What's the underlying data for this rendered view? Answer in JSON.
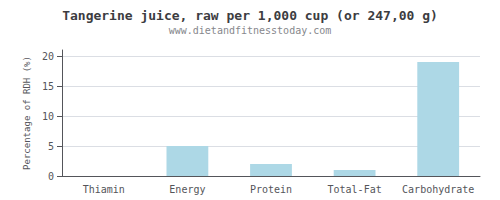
{
  "chart_data": {
    "type": "bar",
    "title": "Tangerine juice, raw per 1,000 cup (or 247,00 g)",
    "subtitle": "www.dietandfitnesstoday.com",
    "categories": [
      "Thiamin",
      "Energy",
      "Protein",
      "Total-Fat",
      "Carbohydrate"
    ],
    "values": [
      0,
      5.0,
      2.0,
      1.0,
      19.0
    ],
    "color": "#add8e6",
    "ylabel": "Percentage of RDH (%)",
    "ylim": [
      0,
      21
    ],
    "yticks": [
      0,
      5,
      10,
      15,
      20
    ],
    "grid": true
  }
}
